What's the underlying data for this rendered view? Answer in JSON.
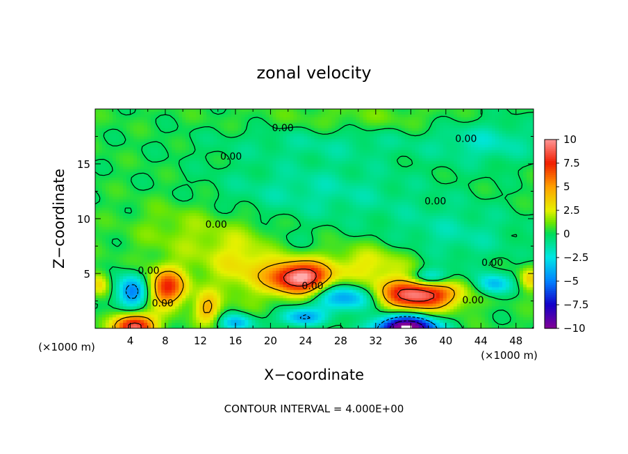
{
  "chart_data": {
    "type": "heatmap",
    "title": "zonal velocity",
    "xlabel": "X−coordinate",
    "ylabel": "Z−coordinate",
    "x_unit_left": "(×1000 m)",
    "x_unit_right": "(×1000 m)",
    "xlim": [
      0,
      50
    ],
    "ylim": [
      0,
      20
    ],
    "x_ticks": [
      4,
      8,
      12,
      16,
      20,
      24,
      28,
      32,
      36,
      40,
      44,
      48
    ],
    "y_ticks": [
      5,
      10,
      15
    ],
    "footer": "CONTOUR INTERVAL = 4.000E+00",
    "colorbar": {
      "range": [
        -10,
        10
      ],
      "ticks": [
        10,
        7.5,
        5,
        2.5,
        0,
        -2.5,
        -5,
        -7.5,
        -10
      ],
      "tick_labels": [
        "10",
        "7.5",
        "5",
        "2.5",
        "0",
        "−2.5",
        "−5",
        "−7.5",
        "−10"
      ]
    },
    "contour_levels": [
      -12,
      -8,
      -4,
      0,
      4,
      8
    ],
    "contour_labels": [
      {
        "text": "0.00",
        "x": 21.4,
        "y": 18.3
      },
      {
        "text": "0.00",
        "x": 42.3,
        "y": 17.3
      },
      {
        "text": "0.00",
        "x": 15.5,
        "y": 15.7
      },
      {
        "text": "0.00",
        "x": 38.8,
        "y": 11.6
      },
      {
        "text": "0.00",
        "x": 13.8,
        "y": 9.5
      },
      {
        "text": "0.00",
        "x": 6.1,
        "y": 5.3
      },
      {
        "text": "0.00",
        "x": 45.3,
        "y": 6.0
      },
      {
        "text": "0.00",
        "x": 24.8,
        "y": 3.9
      },
      {
        "text": "0.00",
        "x": 7.7,
        "y": 2.3
      },
      {
        "text": "0.00",
        "x": 43.1,
        "y": 2.6
      }
    ],
    "features": [
      {
        "x": 23.5,
        "y": 4.6,
        "value": 9.5,
        "sx": 2.3,
        "sy": 1.0
      },
      {
        "x": 36.8,
        "y": 3.1,
        "value": 9.5,
        "sx": 3.2,
        "sy": 1.0
      },
      {
        "x": 4.5,
        "y": 0.2,
        "value": 9.0,
        "sx": 1.6,
        "sy": 0.8
      },
      {
        "x": 8.2,
        "y": 3.7,
        "value": 7.0,
        "sx": 1.5,
        "sy": 1.2
      },
      {
        "x": 12.8,
        "y": 1.8,
        "value": 4.0,
        "sx": 1.0,
        "sy": 1.0
      },
      {
        "x": 35.5,
        "y": 0.0,
        "value": -12.0,
        "sx": 2.4,
        "sy": 0.8
      },
      {
        "x": 4.2,
        "y": 3.3,
        "value": -5.5,
        "sx": 1.3,
        "sy": 1.1
      },
      {
        "x": 28.5,
        "y": 2.8,
        "value": -5.0,
        "sx": 2.6,
        "sy": 0.9
      },
      {
        "x": 23.5,
        "y": 1.0,
        "value": -4.5,
        "sx": 1.8,
        "sy": 0.6
      },
      {
        "x": 16.2,
        "y": 0.5,
        "value": -4.0,
        "sx": 1.4,
        "sy": 0.6
      },
      {
        "x": 38.3,
        "y": 4.6,
        "value": -4.5,
        "sx": 1.7,
        "sy": 0.6
      },
      {
        "x": 45.4,
        "y": 4.0,
        "value": -4.0,
        "sx": 1.4,
        "sy": 0.7
      },
      {
        "x": 18.0,
        "y": 6.0,
        "value": 2.8,
        "sx": 4.0,
        "sy": 2.2
      },
      {
        "x": 31.5,
        "y": 5.8,
        "value": 2.5,
        "sx": 3.5,
        "sy": 1.3
      },
      {
        "x": 25.0,
        "y": 12.5,
        "value": -1.6,
        "sx": 9.0,
        "sy": 2.0
      },
      {
        "x": 27.0,
        "y": 17.0,
        "value": -1.2,
        "sx": 10.0,
        "sy": 1.2
      },
      {
        "x": 45.0,
        "y": 17.0,
        "value": -1.8,
        "sx": 4.0,
        "sy": 1.5
      },
      {
        "x": 41.0,
        "y": 8.5,
        "value": -1.5,
        "sx": 6.0,
        "sy": 2.0
      },
      {
        "x": 21.5,
        "y": 7.5,
        "value": -1.4,
        "sx": 2.5,
        "sy": 1.2
      },
      {
        "x": 10.0,
        "y": 9.0,
        "value": 1.2,
        "sx": 4.0,
        "sy": 2.0
      },
      {
        "x": 30.0,
        "y": 19.0,
        "value": 0.8,
        "sx": 8.0,
        "sy": 1.0
      },
      {
        "x": 49.5,
        "y": 4.5,
        "value": 3.0,
        "sx": 0.8,
        "sy": 0.8
      },
      {
        "x": 0.5,
        "y": 4.0,
        "value": 3.0,
        "sx": 0.8,
        "sy": 0.8
      }
    ]
  }
}
